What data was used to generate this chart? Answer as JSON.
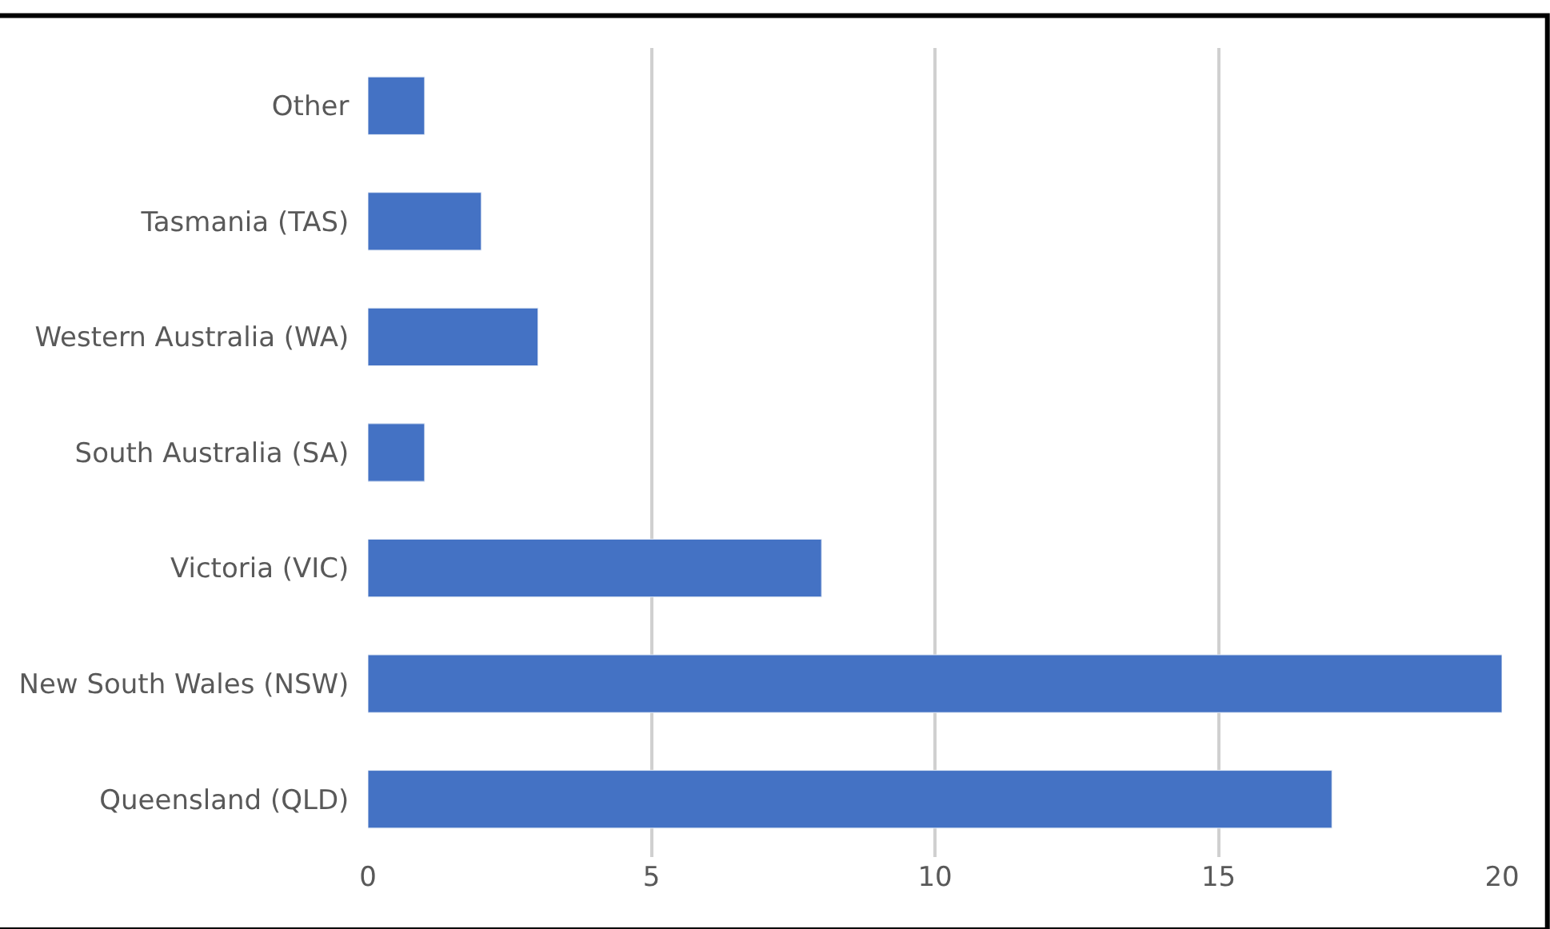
{
  "chart_data": {
    "type": "bar",
    "orientation": "horizontal",
    "categories": [
      "Other",
      "Tasmania (TAS)",
      "Western Australia (WA)",
      "South Australia (SA)",
      "Victoria (VIC)",
      "New South Wales (NSW)",
      "Queensland (QLD)"
    ],
    "values": [
      1,
      2,
      3,
      1,
      8,
      20,
      17
    ],
    "color": "#4472c4",
    "xlim": [
      0,
      20
    ],
    "xticks": [
      0,
      5,
      10,
      15,
      20
    ],
    "grid": "x"
  }
}
